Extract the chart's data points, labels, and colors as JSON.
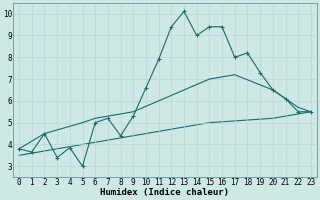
{
  "xlabel": "Humidex (Indice chaleur)",
  "xlim": [
    -0.5,
    23.5
  ],
  "ylim": [
    2.5,
    10.5
  ],
  "xticks": [
    0,
    1,
    2,
    3,
    4,
    5,
    6,
    7,
    8,
    9,
    10,
    11,
    12,
    13,
    14,
    15,
    16,
    17,
    18,
    19,
    20,
    21,
    22,
    23
  ],
  "yticks": [
    3,
    4,
    5,
    6,
    7,
    8,
    9,
    10
  ],
  "bg_color": "#cde8e5",
  "line_color": "#1a6b6b",
  "grid_color": "#b8d8d5",
  "line1_x": [
    0,
    1,
    2,
    3,
    4,
    5,
    6,
    7,
    8,
    9,
    10,
    11,
    12,
    13,
    14,
    15,
    16,
    17,
    18,
    19,
    20,
    21,
    22,
    23
  ],
  "line1_y": [
    3.8,
    3.65,
    4.5,
    3.4,
    3.85,
    3.0,
    5.0,
    5.2,
    4.4,
    5.3,
    6.6,
    7.9,
    9.4,
    10.1,
    9.0,
    9.4,
    9.4,
    8.0,
    8.2,
    7.3,
    6.5,
    6.1,
    5.5,
    5.5
  ],
  "line2_x": [
    0,
    2,
    5,
    6,
    9,
    13,
    15,
    17,
    20,
    21,
    22,
    23
  ],
  "line2_y": [
    3.8,
    4.5,
    5.0,
    5.2,
    5.5,
    6.5,
    7.0,
    7.2,
    6.5,
    6.1,
    5.7,
    5.5
  ],
  "line3_x": [
    0,
    5,
    10,
    15,
    20,
    23
  ],
  "line3_y": [
    3.5,
    4.0,
    4.5,
    5.0,
    5.2,
    5.5
  ],
  "fontsize_label": 6,
  "fontsize_tick": 5.5,
  "fontsize_xlabel": 6.5
}
